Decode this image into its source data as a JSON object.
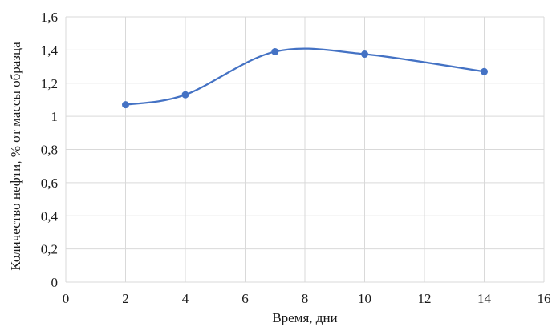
{
  "chart_data": {
    "type": "line",
    "title": "",
    "xlabel": "Время, дни",
    "ylabel": "Количество нефти, % от массы образца",
    "xlim": [
      0,
      16
    ],
    "ylim": [
      0,
      1.6
    ],
    "x_ticks": [
      0,
      2,
      4,
      6,
      8,
      10,
      12,
      14,
      16
    ],
    "x_tick_labels": [
      "0",
      "2",
      "4",
      "6",
      "8",
      "10",
      "12",
      "14",
      "16"
    ],
    "y_ticks": [
      0,
      0.2,
      0.4,
      0.6,
      0.8,
      1.0,
      1.2,
      1.4,
      1.6
    ],
    "y_tick_labels": [
      "0",
      "0,2",
      "0,4",
      "0,6",
      "0,8",
      "1",
      "1,2",
      "1,4",
      "1,6"
    ],
    "grid": true,
    "legend": "none",
    "series": [
      {
        "x": [
          2,
          4,
          7,
          10,
          14
        ],
        "y": [
          1.07,
          1.13,
          1.39,
          1.375,
          1.27
        ],
        "smooth": true,
        "markers": true
      }
    ],
    "colors": {
      "series": "#4472c4",
      "grid": "#d9d9d9",
      "text": "#1a1a1a"
    }
  }
}
